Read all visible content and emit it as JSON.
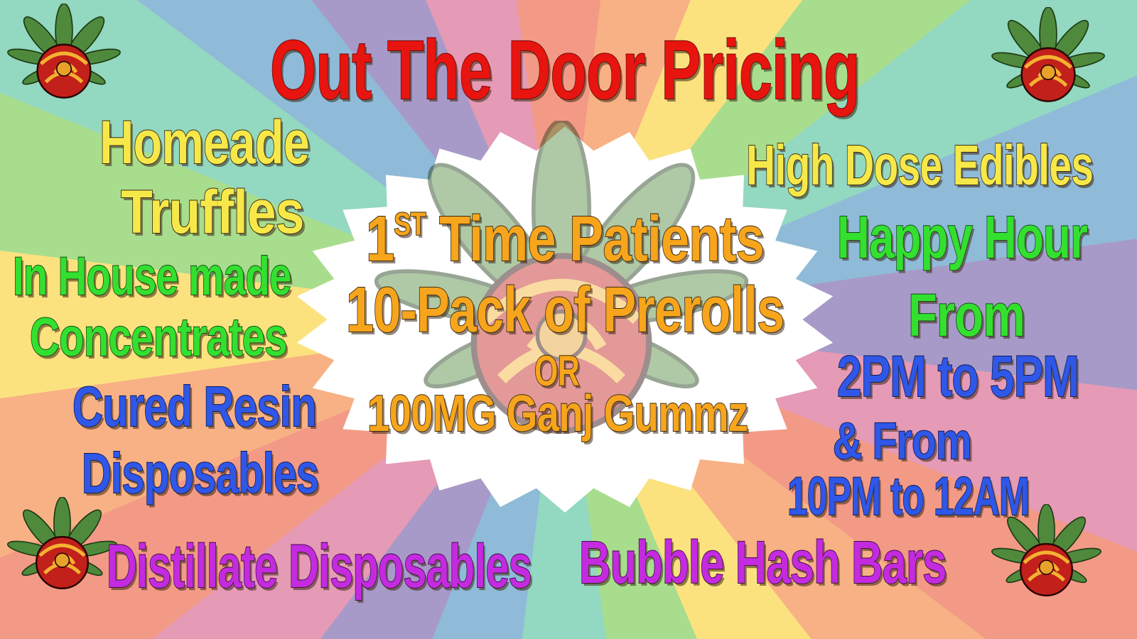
{
  "title": "Out The Door Pricing",
  "left": {
    "homeade": "Homeade",
    "truffles": "Truffles",
    "in_house": "In House made",
    "concentrates": "Concentrates",
    "cured_resin": "Cured Resin",
    "disposables": "Disposables"
  },
  "right": {
    "edibles": "High Dose Edibles",
    "happy_hour": "Happy Hour",
    "from": "From",
    "time1": "2PM to 5PM",
    "and_from": "& From",
    "time2": "10PM to 12AM"
  },
  "bottom": {
    "distillate": "Distillate Disposables",
    "bubble_hash": "Bubble Hash Bars"
  },
  "center": {
    "first_num": "1",
    "first_sup": "ST",
    "first_rest": " Time Patients",
    "prerolls": "10-Pack of Prerolls",
    "or": "OR",
    "gummz": "100MG Ganj Gummz"
  },
  "colors": {
    "title": "#e8140f",
    "yellow": "#f7e84a",
    "green": "#33e030",
    "blue": "#2f57e8",
    "purple": "#c42be0",
    "orange": "#f7a51c"
  },
  "icons": [
    "rose-cannabis-leaf-icon"
  ]
}
